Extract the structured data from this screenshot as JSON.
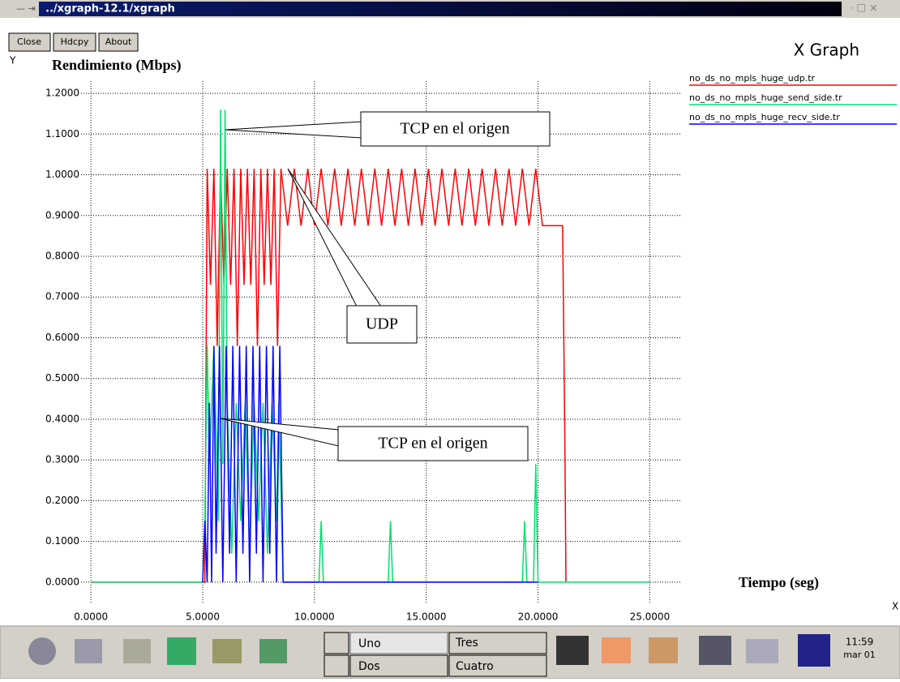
{
  "window": {
    "title": "../xgraph-12.1/xgraph",
    "buttons": [
      "Close",
      "Hdcpy",
      "About"
    ],
    "app_name": "X Graph"
  },
  "chart_data": {
    "type": "line",
    "y_axis_letter": "Y",
    "ylabel": "Rendimiento (Mbps)",
    "xlabel": "Tiempo (seg)",
    "x_axis_letter": "X",
    "grid": true,
    "legend": "right",
    "xlim": [
      -0.44,
      26.4
    ],
    "ylim": [
      -0.054,
      1.23
    ],
    "xticks": [
      {
        "value": 0,
        "label": "0.0000"
      },
      {
        "value": 5,
        "label": "5.0000"
      },
      {
        "value": 10,
        "label": "10.0000"
      },
      {
        "value": 15,
        "label": "15.0000"
      },
      {
        "value": 20,
        "label": "20.0000"
      },
      {
        "value": 25,
        "label": "25.0000"
      }
    ],
    "yticks": [
      {
        "value": 0,
        "label": "0.0000"
      },
      {
        "value": 0.1,
        "label": "0.1000"
      },
      {
        "value": 0.2,
        "label": "0.2000"
      },
      {
        "value": 0.3,
        "label": "0.3000"
      },
      {
        "value": 0.4,
        "label": "0.4000"
      },
      {
        "value": 0.5,
        "label": "0.5000"
      },
      {
        "value": 0.6,
        "label": "0.6000"
      },
      {
        "value": 0.7,
        "label": "0.7000"
      },
      {
        "value": 0.8,
        "label": "0.8000"
      },
      {
        "value": 0.9,
        "label": "0.9000"
      },
      {
        "value": 1.0,
        "label": "1.0000"
      },
      {
        "value": 1.1,
        "label": "1.1000"
      },
      {
        "value": 1.2,
        "label": "1.2000"
      }
    ],
    "series": [
      {
        "name": "no_ds_no_mpls_huge_udp.tr",
        "color": "#ff0000",
        "x": [
          0,
          5.1,
          5.2,
          5.35,
          5.5,
          5.65,
          5.8,
          5.95,
          6.1,
          6.25,
          6.4,
          6.55,
          6.7,
          6.85,
          7.0,
          7.15,
          7.3,
          7.45,
          7.6,
          7.75,
          7.9,
          8.05,
          8.2,
          8.35,
          8.5,
          8.8,
          9.1,
          9.4,
          9.7,
          10.0,
          10.3,
          10.6,
          10.9,
          11.2,
          11.5,
          11.8,
          12.1,
          12.4,
          12.7,
          13.0,
          13.3,
          13.6,
          13.9,
          14.2,
          14.5,
          14.8,
          15.1,
          15.4,
          15.7,
          16.0,
          16.3,
          16.6,
          16.9,
          17.2,
          17.5,
          17.8,
          18.1,
          18.4,
          18.7,
          19.0,
          19.3,
          19.6,
          19.9,
          20.2,
          21.1,
          21.2,
          21.25
        ],
        "values": [
          0,
          0,
          1.015,
          0.73,
          1.015,
          0.58,
          1.015,
          0.73,
          1.015,
          0.73,
          1.015,
          0.58,
          1.015,
          0.73,
          1.015,
          0.73,
          1.015,
          0.58,
          1.015,
          0.73,
          1.015,
          0.73,
          1.015,
          0.58,
          1.015,
          0.875,
          1.015,
          0.875,
          1.015,
          0.875,
          1.015,
          0.875,
          1.015,
          0.875,
          1.015,
          0.875,
          1.015,
          0.875,
          1.015,
          0.875,
          1.015,
          0.875,
          1.015,
          0.875,
          1.015,
          0.875,
          1.015,
          0.875,
          1.015,
          0.875,
          1.015,
          0.875,
          1.015,
          0.875,
          1.015,
          0.875,
          1.015,
          0.875,
          1.015,
          0.875,
          1.015,
          0.875,
          1.015,
          0.875,
          0.875,
          0.36,
          0
        ]
      },
      {
        "name": "no_ds_no_mpls_huge_send_side.tr",
        "color": "#00e070",
        "x": [
          0,
          5.0,
          5.1,
          5.2,
          5.3,
          5.5,
          5.7,
          5.8,
          5.9,
          6.0,
          6.1,
          6.3,
          6.5,
          6.7,
          6.9,
          7.1,
          7.3,
          7.5,
          7.7,
          7.9,
          8.1,
          8.3,
          8.4,
          8.6,
          10.2,
          10.3,
          10.4,
          13.3,
          13.4,
          13.5,
          19.3,
          19.4,
          19.5,
          19.8,
          19.9,
          20.0,
          25.0
        ],
        "values": [
          0,
          0,
          0.15,
          0.58,
          0.29,
          0.58,
          0.15,
          1.16,
          0.29,
          1.16,
          0.44,
          0.07,
          0.44,
          0.15,
          0.44,
          0.07,
          0.44,
          0.15,
          0.44,
          0.07,
          0.44,
          0.15,
          0.44,
          0,
          0,
          0.15,
          0,
          0,
          0.15,
          0,
          0,
          0.15,
          0,
          0,
          0.29,
          0,
          0
        ]
      },
      {
        "name": "no_ds_no_mpls_huge_recv_side.tr",
        "color": "#0000ff",
        "x": [
          5.0,
          5.1,
          5.2,
          5.3,
          5.4,
          5.5,
          5.6,
          5.75,
          5.9,
          6.05,
          6.2,
          6.35,
          6.5,
          6.65,
          6.8,
          6.95,
          7.1,
          7.25,
          7.4,
          7.55,
          7.7,
          7.85,
          8.0,
          8.15,
          8.3,
          8.45,
          8.6,
          20.0
        ],
        "values": [
          0,
          0.15,
          0,
          0.44,
          0,
          0.58,
          0.07,
          0.58,
          0,
          0.58,
          0.07,
          0.58,
          0,
          0.58,
          0.07,
          0.58,
          0,
          0.58,
          0.07,
          0.58,
          0,
          0.58,
          0.07,
          0.58,
          0,
          0.58,
          0,
          0
        ]
      }
    ],
    "annotations": [
      "TCP en el origen",
      "UDP",
      "TCP en el origen"
    ]
  },
  "taskbar": {
    "desktops": [
      "Uno",
      "Dos",
      "Tres",
      "Cuatro"
    ],
    "time": "11:59",
    "date": "mar 01"
  }
}
